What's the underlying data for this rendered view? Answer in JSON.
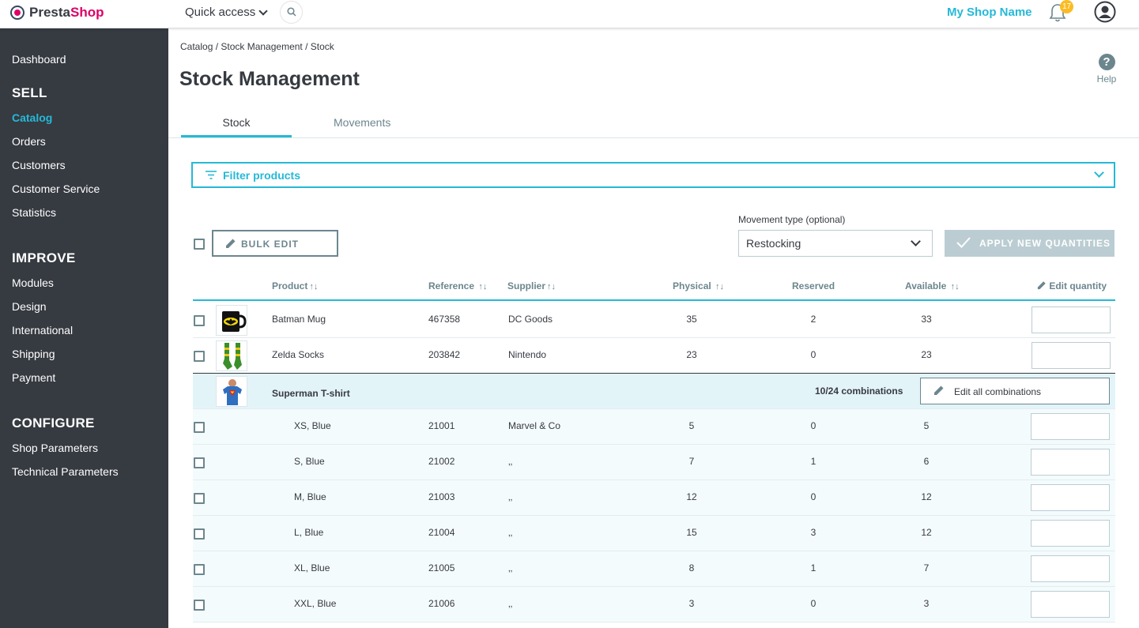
{
  "topbar": {
    "logo_part1": "Presta",
    "logo_part2": "Shop",
    "quick_access": "Quick access",
    "shop_name": "My Shop Name",
    "notifications_count": "17"
  },
  "sidebar": {
    "dashboard": "Dashboard",
    "sell": "SELL",
    "sell_items": [
      "Catalog",
      "Orders",
      "Customers",
      "Customer Service",
      "Statistics"
    ],
    "improve": "IMPROVE",
    "improve_items": [
      "Modules",
      "Design",
      "International",
      "Shipping",
      "Payment"
    ],
    "configure": "CONFIGURE",
    "configure_items": [
      "Shop Parameters",
      "Technical Parameters"
    ]
  },
  "page": {
    "breadcrumb": "Catalog / Stock Management / Stock",
    "title": "Stock Management",
    "help": "Help",
    "tabs": [
      "Stock",
      "Movements"
    ],
    "filter_label": "Filter products",
    "bulk_edit": "BULK EDIT",
    "movement_label": "Movement type (optional)",
    "movement_value": "Restocking",
    "apply": "APPLY NEW QUANTITIES"
  },
  "table": {
    "headers": {
      "product": "Product",
      "reference": "Reference",
      "supplier": "Supplier",
      "physical": "Physical",
      "reserved": "Reserved",
      "available": "Available",
      "edit_quantity": "Edit quantity"
    },
    "rows": [
      {
        "product": "Batman Mug",
        "reference": "467358",
        "supplier": "DC Goods",
        "physical": "35",
        "reserved": "2",
        "available": "33"
      },
      {
        "product": "Zelda Socks",
        "reference": "203842",
        "supplier": "Nintendo",
        "physical": "23",
        "reserved": "0",
        "available": "23"
      }
    ],
    "parent": {
      "product": "Superman T-shirt",
      "combinations": "10/24 combinations",
      "edit_all": "Edit all combinations"
    },
    "subrows": [
      {
        "product": "XS, Blue",
        "reference": "21001",
        "supplier": "Marvel & Co",
        "physical": "5",
        "reserved": "0",
        "available": "5"
      },
      {
        "product": "S, Blue",
        "reference": "21002",
        "supplier": "‚‚",
        "physical": "7",
        "reserved": "1",
        "available": "6"
      },
      {
        "product": "M, Blue",
        "reference": "21003",
        "supplier": "‚‚",
        "physical": "12",
        "reserved": "0",
        "available": "12"
      },
      {
        "product": "L, Blue",
        "reference": "21004",
        "supplier": "‚‚",
        "physical": "15",
        "reserved": "3",
        "available": "12"
      },
      {
        "product": "XL, Blue",
        "reference": "21005",
        "supplier": "‚‚",
        "physical": "8",
        "reserved": "1",
        "available": "7"
      },
      {
        "product": "XXL, Blue",
        "reference": "21006",
        "supplier": "‚‚",
        "physical": "3",
        "reserved": "0",
        "available": "3"
      }
    ]
  }
}
